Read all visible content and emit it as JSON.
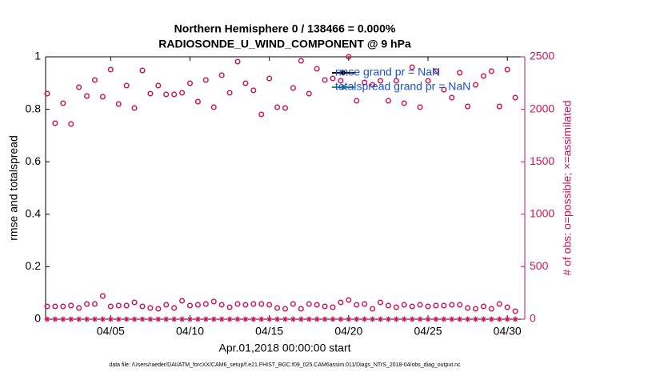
{
  "chart_data": {
    "type": "scatter",
    "title": [
      "Northern Hemisphere 0 / 138466 = 0.000%",
      "RADIOSONDE_U_WIND_COMPONENT @ 9 hPa"
    ],
    "ylabel": "rmse and totalspread",
    "y2label": "# of obs: o=possible; ×=assimilated",
    "xlabel": "Apr.01,2018 00:00:00 start",
    "footer": "data file: /Users/raeder/DAI/ATM_forcXX/CAM6_setup/f.e21.FHIST_BGC.f09_025.CAM6assim.011/Diags_NTrS_2018-04/obs_diag_output.nc",
    "xlim": [
      0.9,
      31.1
    ],
    "xticks": [
      {
        "value": 5,
        "label": "04/05"
      },
      {
        "value": 10,
        "label": "04/10"
      },
      {
        "value": 15,
        "label": "04/15"
      },
      {
        "value": 20,
        "label": "04/20"
      },
      {
        "value": 25,
        "label": "04/25"
      },
      {
        "value": 30,
        "label": "04/30"
      }
    ],
    "ylim": [
      0,
      1
    ],
    "yticks": [
      0,
      0.2,
      0.4,
      0.6,
      0.8,
      1
    ],
    "y2lim": [
      0,
      2500
    ],
    "y2ticks": [
      0,
      500,
      1000,
      1500,
      2000,
      2500
    ],
    "y2color": "#c8175a",
    "legend": [
      {
        "label": "rmse grand pr = NaN",
        "color": "#000000"
      },
      {
        "label": "totalspread grand pr = NaN",
        "color": "#1a8a80"
      }
    ],
    "legend_text_color": "#1a4fd6",
    "x": [
      1,
      1.5,
      2,
      2.5,
      3,
      3.5,
      4,
      4.5,
      5,
      5.5,
      6,
      6.5,
      7,
      7.5,
      8,
      8.5,
      9,
      9.5,
      10,
      10.5,
      11,
      11.5,
      12,
      12.5,
      13,
      13.5,
      14,
      14.5,
      15,
      15.5,
      16,
      16.5,
      17,
      17.5,
      18,
      18.5,
      19,
      19.5,
      20,
      20.5,
      21,
      21.5,
      22,
      22.5,
      23,
      23.5,
      24,
      24.5,
      25,
      25.5,
      26,
      26.5,
      27,
      27.5,
      28,
      28.5,
      29,
      29.5,
      30,
      30.5
    ],
    "series": [
      {
        "marker": "o",
        "axis": "y2",
        "color": "#c8175a",
        "values": [
          2149,
          1867,
          2058,
          1860,
          2210,
          2126,
          2279,
          2119,
          2378,
          2050,
          2226,
          2012,
          2370,
          2149,
          2226,
          2142,
          2142,
          2157,
          2248,
          2073,
          2279,
          2020,
          2325,
          2157,
          2454,
          2248,
          2180,
          1951,
          2294,
          2020,
          2012,
          2203,
          2462,
          2149,
          2386,
          2279,
          2294,
          2271,
          2500,
          2081,
          2256,
          2233,
          2271,
          2081,
          2271,
          2058,
          2401,
          2020,
          2271,
          2363,
          2187,
          2111,
          2348,
          2027,
          2233,
          2317,
          2363,
          2027,
          2378,
          2111
        ]
      },
      {
        "marker": "o",
        "axis": "y2",
        "color": "#c8175a",
        "values": [
          122,
          122,
          122,
          130,
          107,
          145,
          145,
          221,
          122,
          130,
          130,
          160,
          122,
          107,
          99,
          137,
          107,
          175,
          130,
          137,
          145,
          168,
          137,
          114,
          145,
          137,
          145,
          145,
          137,
          107,
          99,
          145,
          99,
          145,
          137,
          122,
          114,
          160,
          183,
          137,
          145,
          99,
          160,
          130,
          114,
          137,
          122,
          137,
          122,
          130,
          130,
          137,
          137,
          107,
          99,
          122,
          99,
          145,
          114,
          76
        ]
      },
      {
        "marker": "*",
        "axis": "y2",
        "color": "#c8175a",
        "values": [
          0,
          0,
          0,
          0,
          0,
          0,
          0,
          0,
          0,
          0,
          0,
          0,
          0,
          0,
          0,
          0,
          0,
          0,
          0,
          0,
          0,
          0,
          0,
          0,
          0,
          0,
          0,
          0,
          0,
          0,
          0,
          0,
          0,
          0,
          0,
          0,
          0,
          0,
          0,
          0,
          0,
          0,
          0,
          0,
          0,
          0,
          0,
          0,
          0,
          0,
          0,
          0,
          0,
          0,
          0,
          0,
          0,
          0,
          0,
          0
        ]
      }
    ]
  }
}
